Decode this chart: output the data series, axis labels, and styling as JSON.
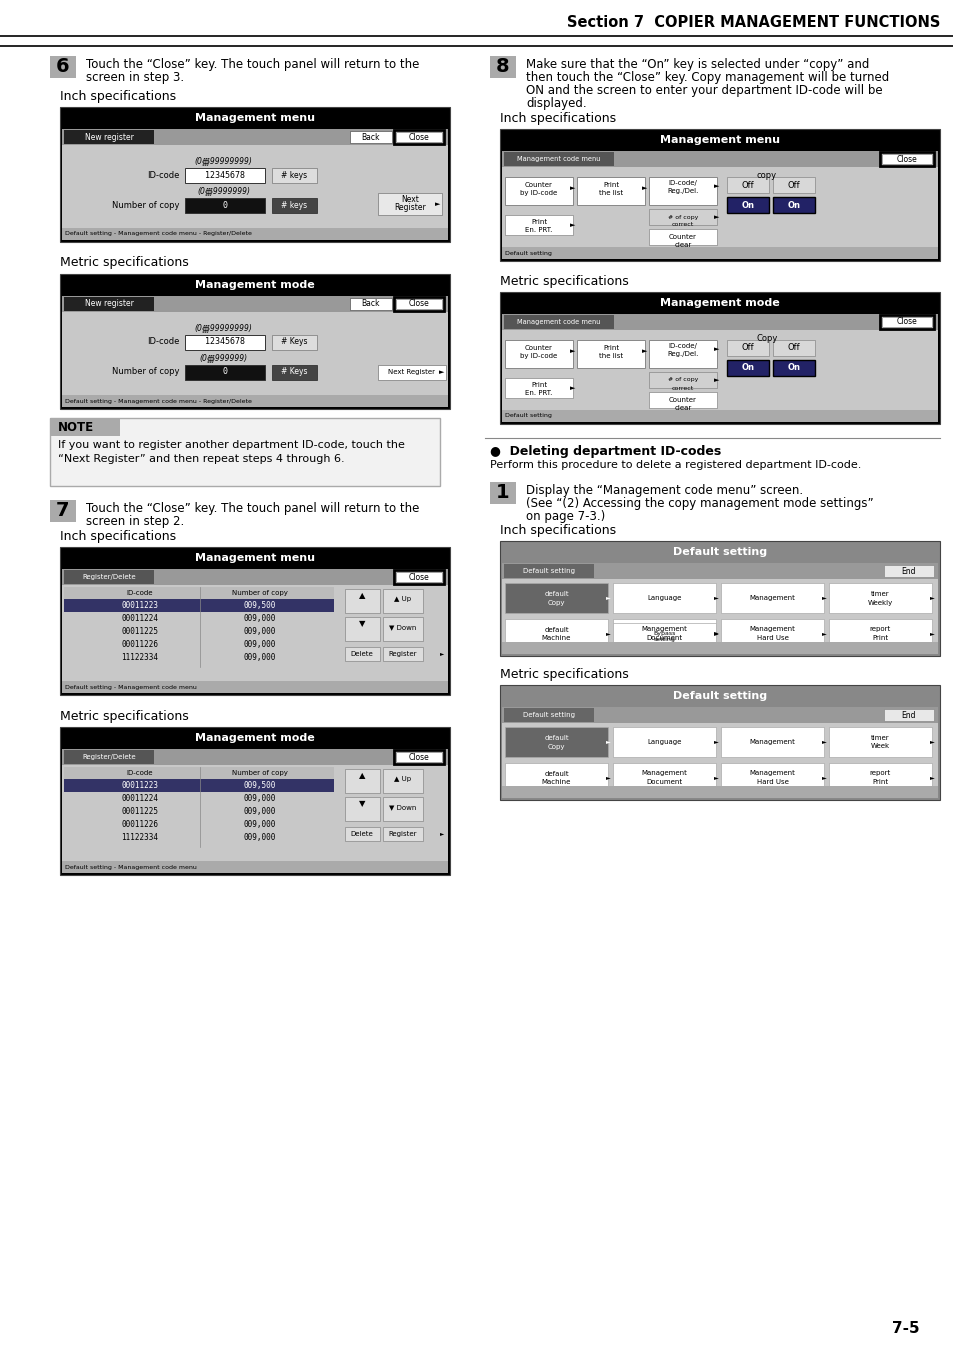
{
  "page_bg": "#ffffff",
  "title_text": "Section 7  COPIER MANAGEMENT FUNCTIONS",
  "page_number": "7-5",
  "step6_num": "6",
  "step6_text_line1": "Touch the “Close” key. The touch panel will return to the",
  "step6_text_line2": "screen in step 3.",
  "step6_inch_label": "Inch specifications",
  "step6_metric_label": "Metric specifications",
  "step7_num": "7",
  "step7_text_line1": "Touch the “Close” key. The touch panel will return to the",
  "step7_text_line2": "screen in step 2.",
  "step7_inch_label": "Inch specifications",
  "step7_metric_label": "Metric specifications",
  "step8_num": "8",
  "step8_text_line1": "Make sure that the “On” key is selected under “copy” and",
  "step8_text_line2": "then touch the “Close” key. Copy management will be turned",
  "step8_text_line3": "ON and the screen to enter your department ID-code will be",
  "step8_text_line4": "displayed.",
  "step8_inch_label": "Inch specifications",
  "step8_metric_label": "Metric specifications",
  "note_title": "NOTE",
  "note_text_line1": "If you want to register another department ID-code, touch the",
  "note_text_line2": "“Next Register” and then repeat steps 4 through 6.",
  "delete_title": "●  Deleting department ID-codes",
  "delete_desc": "Perform this procedure to delete a registered department ID-code.",
  "step1_num": "1",
  "step1_text_line1": "Display the “Management code menu” screen.",
  "step1_text_line2": "(See “(2) Accessing the copy management mode settings”",
  "step1_text_line3": "on page 7-3.)",
  "step1_inch_label": "Inch specifications",
  "step1_metric_label": "Metric specifications"
}
